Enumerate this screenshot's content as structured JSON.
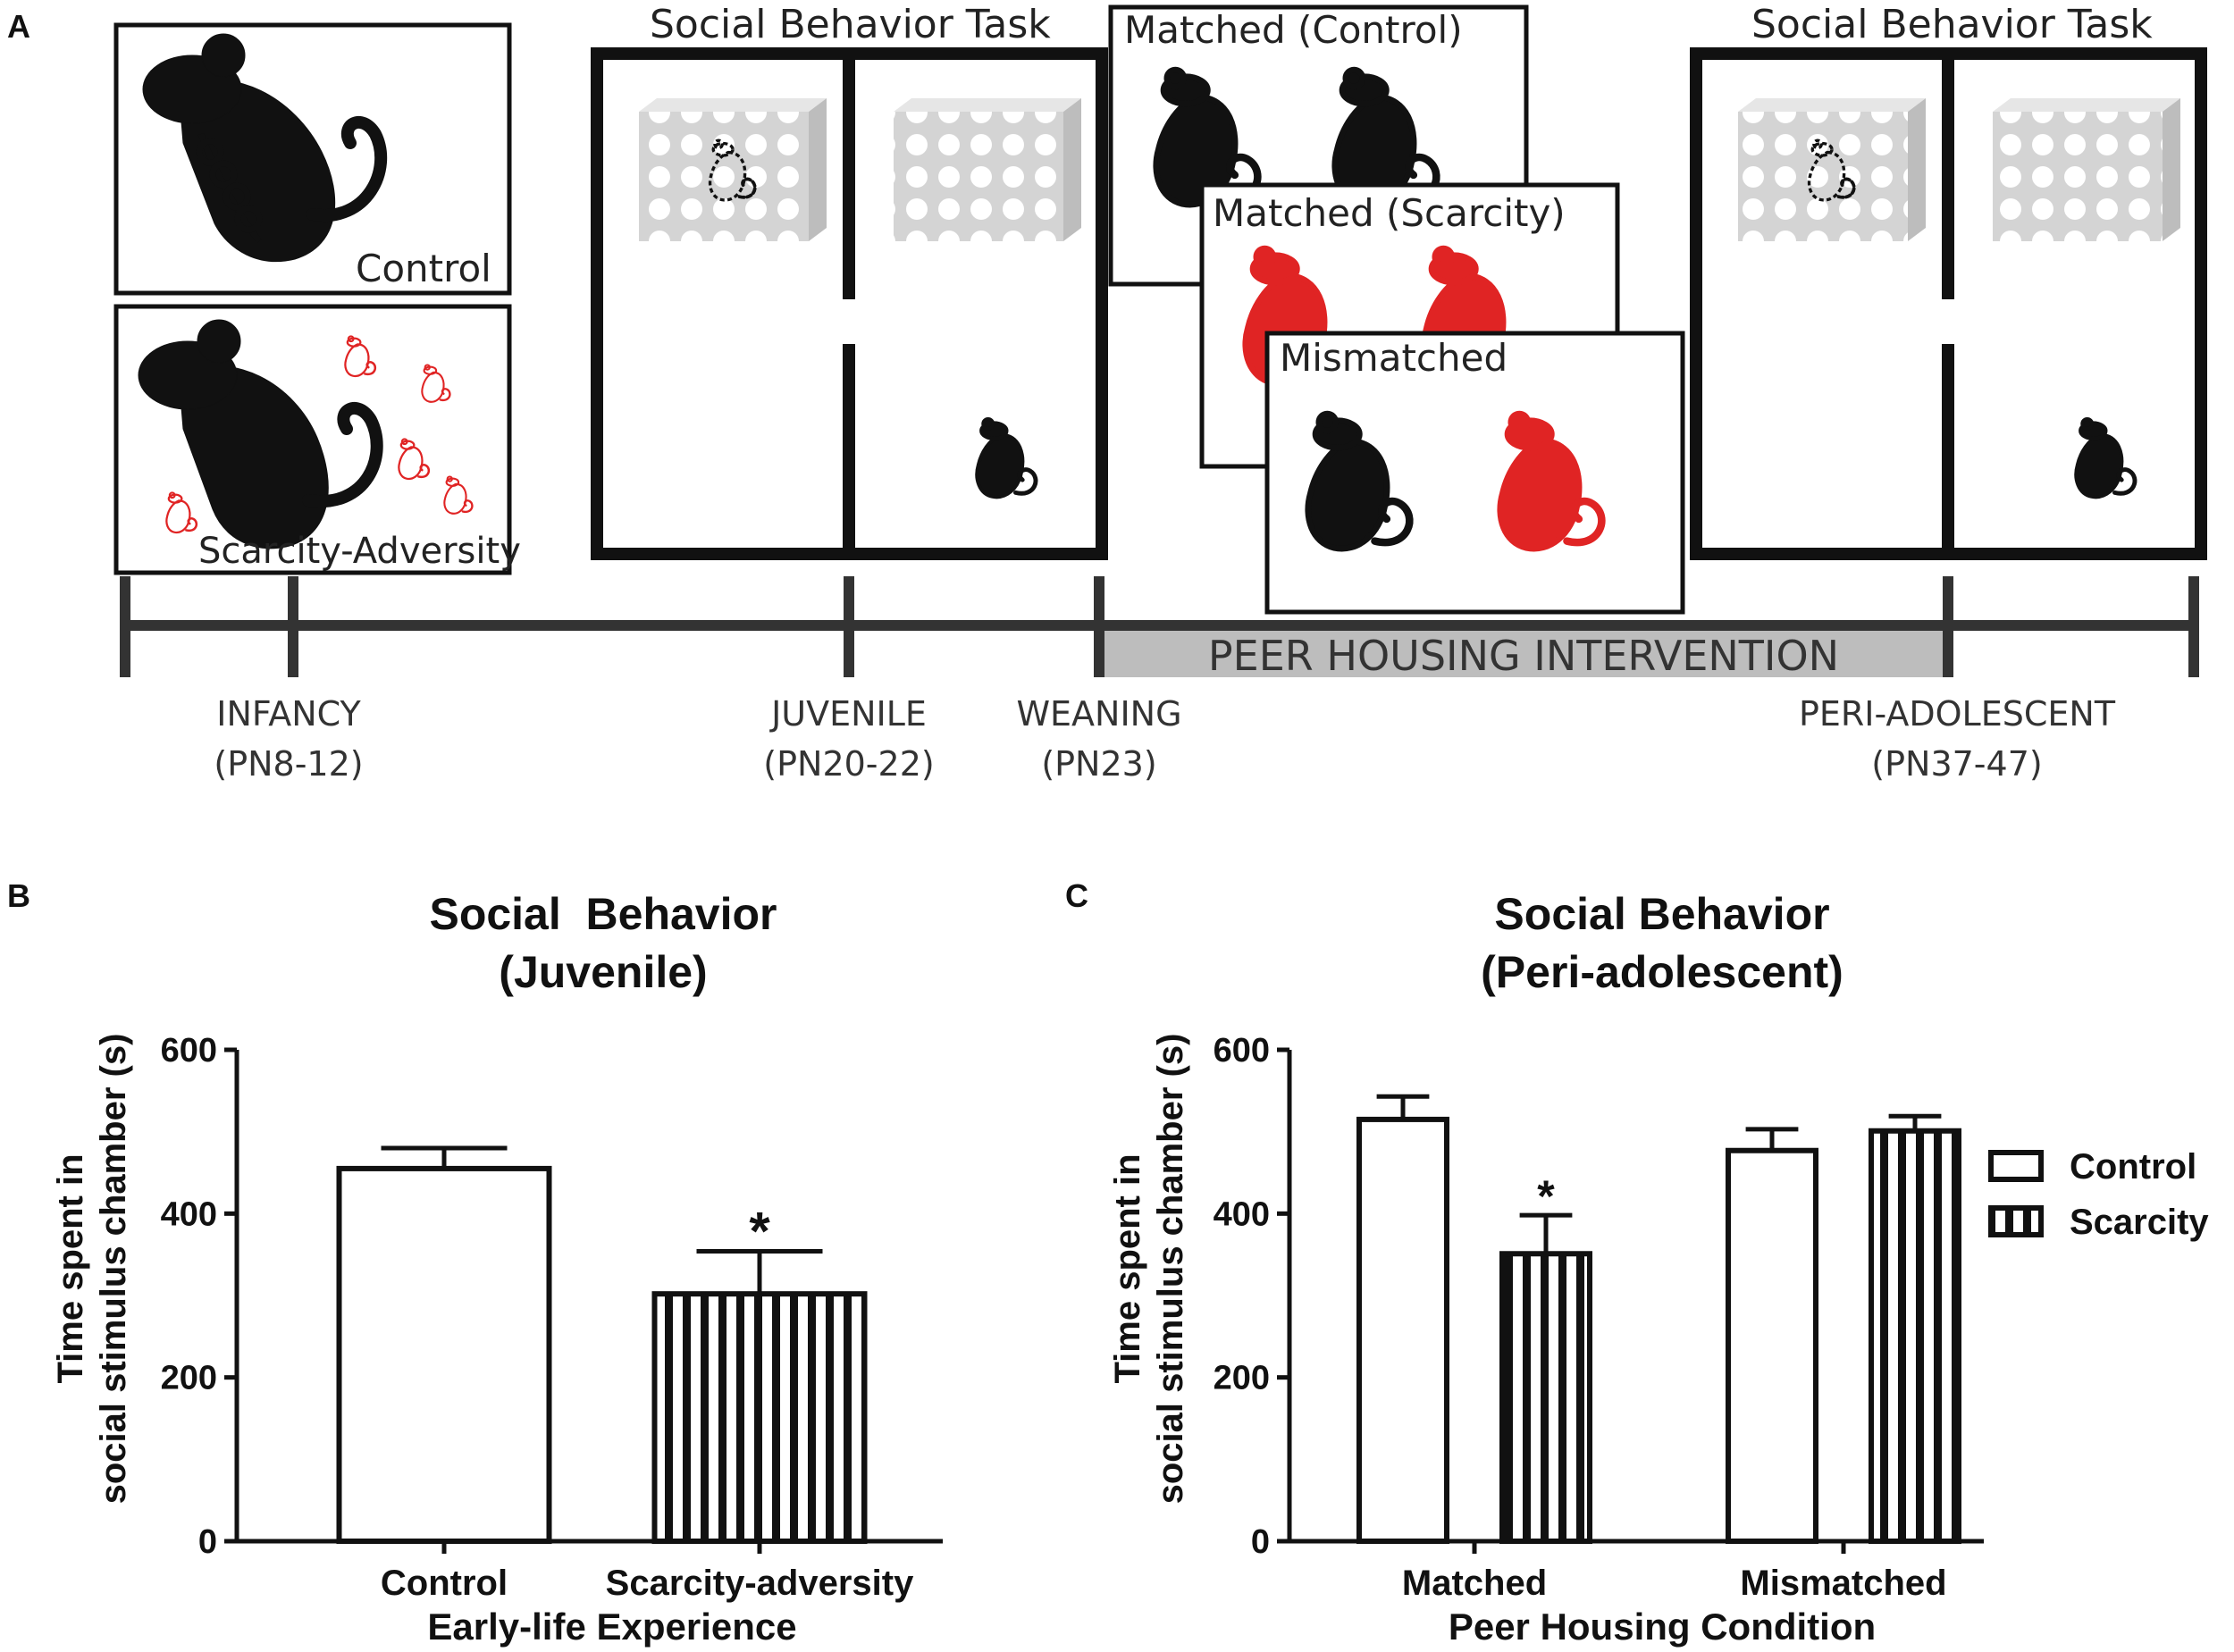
{
  "colors": {
    "ink": "#111111",
    "accent_red": "#e02424",
    "cage_gray": "#d4d4d4",
    "band_gray": "#bdbdbd",
    "timeline": "#333333"
  },
  "panel_a": {
    "label": "A",
    "control_box_label": "Control",
    "scarcity_box_label": "Scarcity-Adversity",
    "task_left_title": "Social Behavior Task",
    "task_right_title": "Social Behavior Task",
    "matched_control_label": "Matched (Control)",
    "matched_scarcity_label": "Matched (Scarcity)",
    "mismatched_label": "Mismatched",
    "intervention_label": "PEER HOUSING INTERVENTION",
    "timeline": [
      {
        "stage": "INFANCY",
        "range": "(PN8-12)"
      },
      {
        "stage": "JUVENILE",
        "range": "(PN20-22)"
      },
      {
        "stage": "WEANING",
        "range": "(PN23)"
      },
      {
        "stage": "PERI-ADOLESCENT",
        "range": "(PN37-47)"
      }
    ],
    "icons": [
      "rat-mother-icon",
      "rat-pup-icon",
      "stimulus-cage-icon",
      "rat-juvenile-icon"
    ]
  },
  "chart_data": [
    {
      "panel": "B",
      "type": "bar",
      "title_line1": "Social  Behavior",
      "title_line2": "(Juvenile)",
      "categories": [
        "Control",
        "Scarcity-adversity"
      ],
      "values": [
        455,
        302
      ],
      "errors": [
        25,
        52
      ],
      "fills": [
        "open",
        "striped"
      ],
      "significance": [
        "",
        "*"
      ],
      "xlabel": "Early-life Experience",
      "ylabel_line1": "Time spent in",
      "ylabel_line2": "social stimulus chamber (s)",
      "ylim": [
        0,
        600
      ],
      "yticks": [
        0,
        200,
        400,
        600
      ],
      "grid": false
    },
    {
      "panel": "C",
      "type": "bar",
      "title_line1": "Social Behavior",
      "title_line2": "(Peri-adolescent)",
      "categories": [
        "Matched",
        "Mismatched"
      ],
      "series": [
        {
          "name": "Control",
          "fill": "open",
          "values": [
            515,
            477
          ],
          "errors": [
            28,
            26
          ]
        },
        {
          "name": "Scarcity",
          "fill": "striped",
          "values": [
            351,
            501
          ],
          "errors": [
            47,
            18
          ]
        }
      ],
      "significance": [
        [
          "",
          "*"
        ],
        [
          "",
          ""
        ]
      ],
      "xlabel": "Peer Housing Condition",
      "ylabel_line1": "Time spent in",
      "ylabel_line2": "social stimulus chamber (s)",
      "ylim": [
        0,
        600
      ],
      "yticks": [
        0,
        200,
        400,
        600
      ],
      "legend_position": "right",
      "grid": false
    }
  ]
}
